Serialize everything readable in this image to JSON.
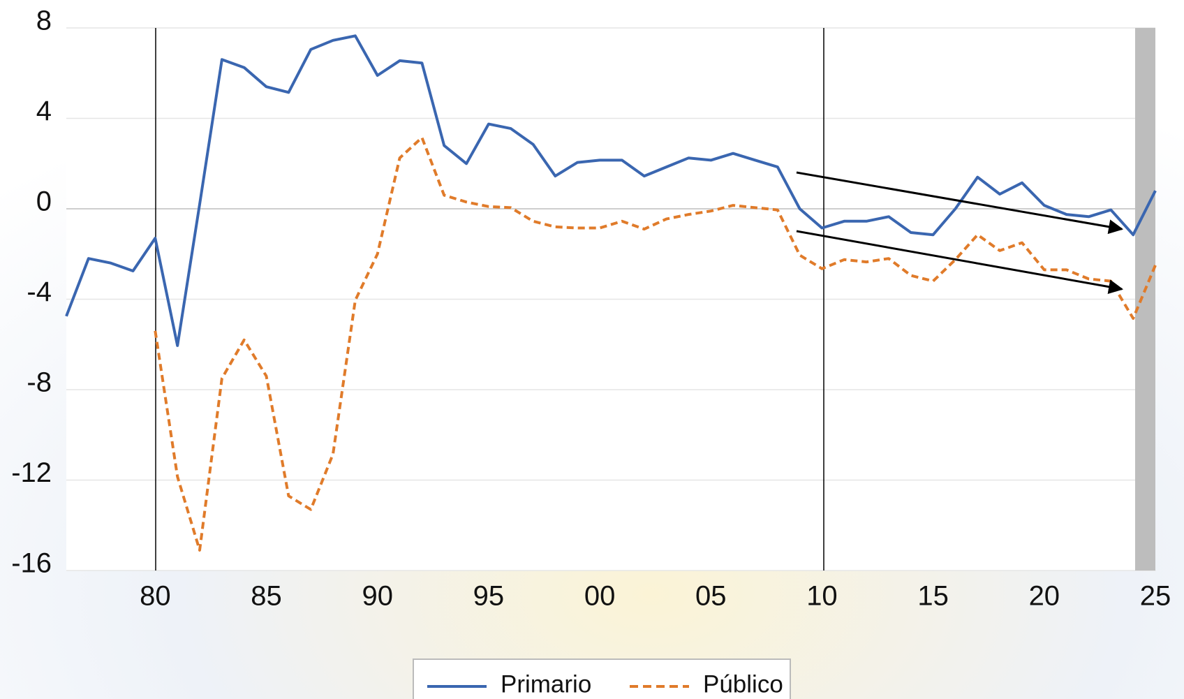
{
  "chart_data": {
    "type": "line",
    "x": [
      1976,
      1977,
      1978,
      1979,
      1980,
      1981,
      1982,
      1983,
      1984,
      1985,
      1986,
      1987,
      1988,
      1989,
      1990,
      1991,
      1992,
      1993,
      1994,
      1995,
      1996,
      1997,
      1998,
      1999,
      2000,
      2001,
      2002,
      2003,
      2004,
      2005,
      2006,
      2007,
      2008,
      2009,
      2010,
      2011,
      2012,
      2013,
      2014,
      2015,
      2016,
      2017,
      2018,
      2019,
      2020,
      2021,
      2022,
      2023,
      2024,
      2025
    ],
    "series": [
      {
        "name": "Primario",
        "color": "#3a66b0",
        "dash": false,
        "values": [
          -4.75,
          -2.2,
          -2.4,
          -2.75,
          -1.3,
          -6.05,
          0.2,
          6.6,
          6.25,
          5.4,
          5.15,
          7.05,
          7.45,
          7.65,
          5.9,
          6.55,
          6.45,
          2.8,
          2.0,
          3.75,
          3.55,
          2.85,
          1.45,
          2.05,
          2.15,
          2.15,
          1.45,
          1.85,
          2.25,
          2.15,
          2.45,
          2.15,
          1.85,
          0,
          -0.85,
          -0.55,
          -0.55,
          -0.35,
          -1.05,
          -1.15,
          0,
          1.4,
          0.65,
          1.15,
          0.15,
          -0.25,
          -0.35,
          -0.05,
          -1.15,
          0.8
        ]
      },
      {
        "name": "Público",
        "color": "#e07b2a",
        "dash": true,
        "values": [
          null,
          null,
          null,
          null,
          -5.4,
          -11.85,
          -15.1,
          -7.5,
          -5.8,
          -7.4,
          -12.7,
          -13.3,
          -10.85,
          -4.05,
          -2.0,
          2.25,
          3.15,
          0.6,
          0.3,
          0.1,
          0.05,
          -0.55,
          -0.8,
          -0.85,
          -0.85,
          -0.55,
          -0.9,
          -0.45,
          -0.25,
          -0.1,
          0.15,
          0.05,
          -0.05,
          -2.05,
          -2.65,
          -2.25,
          -2.35,
          -2.2,
          -2.95,
          -3.2,
          -2.25,
          -1.15,
          -1.85,
          -1.5,
          -2.7,
          -2.7,
          -3.1,
          -3.2,
          -4.85,
          -2.5
        ]
      }
    ],
    "xlim": [
      1976,
      2025
    ],
    "xticks": [
      {
        "value": 1980,
        "label": "80"
      },
      {
        "value": 1985,
        "label": "85"
      },
      {
        "value": 1990,
        "label": "90"
      },
      {
        "value": 1995,
        "label": "95"
      },
      {
        "value": 2000,
        "label": "00"
      },
      {
        "value": 2005,
        "label": "05"
      },
      {
        "value": 2010,
        "label": "10"
      },
      {
        "value": 2015,
        "label": "15"
      },
      {
        "value": 2020,
        "label": "20"
      },
      {
        "value": 2025,
        "label": "25"
      }
    ],
    "ylim": [
      -16,
      8
    ],
    "yticks": [
      8,
      4,
      0,
      -4,
      -8,
      -12,
      -16
    ],
    "grid": true
  }
}
